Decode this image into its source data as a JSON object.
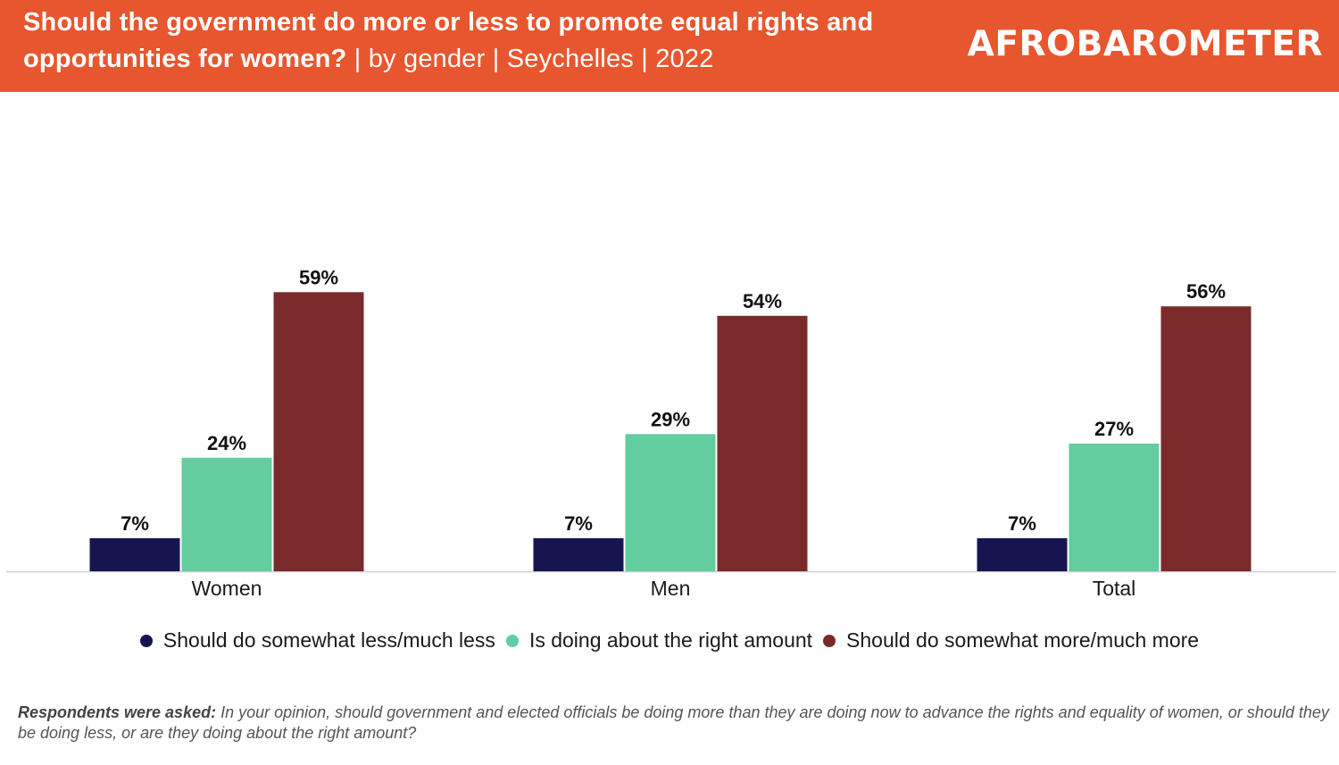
{
  "header": {
    "title_main": "Should the government do more or less to promote equal rights and opportunities for women?",
    "title_sub": " | by gender | Seychelles | 2022",
    "brand": "AFROBAROMETER",
    "bg_color": "#e8562f"
  },
  "chart_data": {
    "type": "bar",
    "categories": [
      "Women",
      "Men",
      "Total"
    ],
    "series": [
      {
        "name": "Should do somewhat less/much less",
        "values": [
          7,
          7,
          7
        ],
        "color": "#171551"
      },
      {
        "name": "Is doing about the right amount",
        "values": [
          24,
          29,
          27
        ],
        "color": "#63cda0"
      },
      {
        "name": "Should do somewhat more/much more",
        "values": [
          59,
          54,
          56
        ],
        "color": "#7b2a2b"
      }
    ],
    "value_suffix": "%",
    "ylim": [
      0,
      100
    ],
    "grid": false,
    "legend_position": "bottom"
  },
  "footnote": {
    "lead": "Respondents were asked:",
    "text": " In your opinion, should government and elected officials be doing more than they are doing now to advance the rights and equality of women, or should they be doing less, or are they doing about the right amount?"
  }
}
